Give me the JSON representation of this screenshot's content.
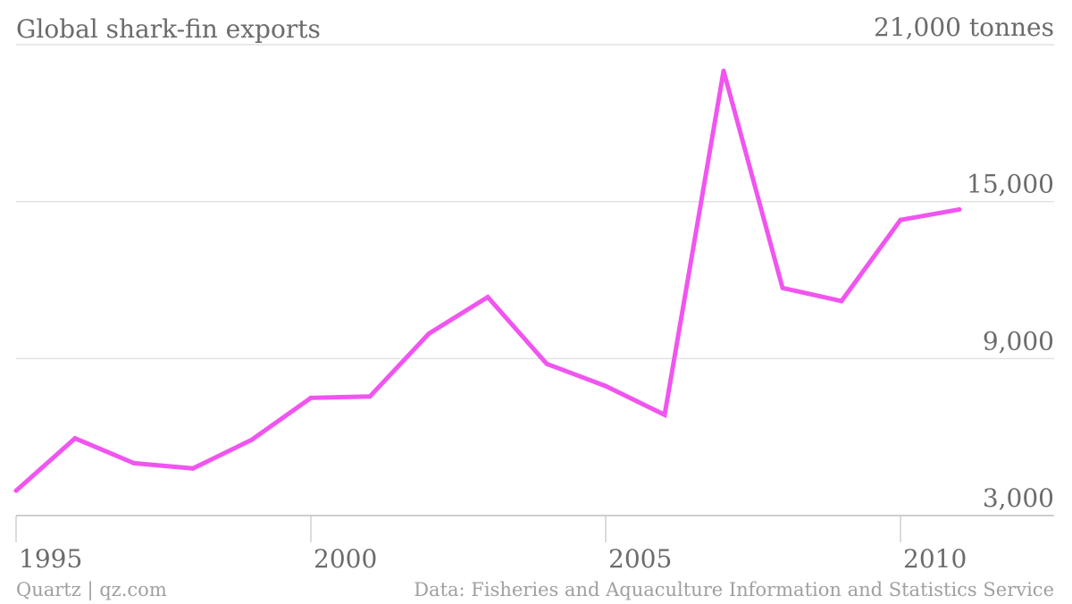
{
  "chart_data": {
    "type": "line",
    "title": "Global shark-fin exports",
    "unit_label": "21,000 tonnes",
    "x": [
      1995,
      1996,
      1997,
      1998,
      1999,
      2000,
      2001,
      2002,
      2003,
      2004,
      2005,
      2006,
      2007,
      2008,
      2009,
      2010,
      2011
    ],
    "series": [
      {
        "values": [
          3950,
          5950,
          5000,
          4800,
          5900,
          7500,
          7550,
          9950,
          11350,
          8800,
          7950,
          6850,
          20000,
          11700,
          11200,
          14300,
          14700
        ],
        "color": "#f055f0"
      }
    ],
    "xlim": [
      1995,
      2012
    ],
    "ylim": [
      3000,
      21000
    ],
    "yticks": [
      {
        "value": 21000,
        "label": "21,000 tonnes"
      },
      {
        "value": 15000,
        "label": "15,000"
      },
      {
        "value": 9000,
        "label": "9,000"
      },
      {
        "value": 3000,
        "label": "3,000"
      }
    ],
    "xticks": [
      {
        "value": 1995,
        "label": "1995"
      },
      {
        "value": 2000,
        "label": "2000"
      },
      {
        "value": 2005,
        "label": "2005"
      },
      {
        "value": 2010,
        "label": "2010"
      }
    ],
    "grid": true,
    "legend": "none"
  },
  "footer": {
    "source_left": "Quartz | qz.com",
    "source_right": "Data: Fisheries and Aquaculture Information and Statistics Service"
  },
  "colors": {
    "line": "#f055f0",
    "grid": "#dcdcdc",
    "text": "#6b6b6b",
    "footer_text": "#a0a0a0"
  }
}
